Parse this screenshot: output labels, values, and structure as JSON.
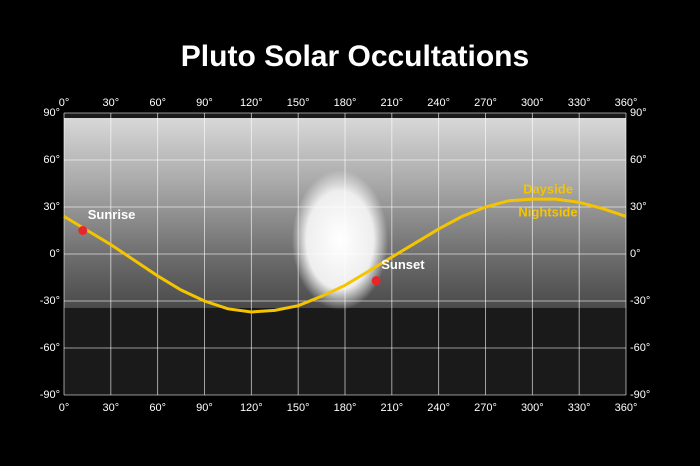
{
  "chart_data": {
    "type": "line",
    "title": "Pluto Solar Occultations",
    "x": [
      0,
      15,
      30,
      45,
      60,
      75,
      90,
      105,
      120,
      135,
      150,
      165,
      180,
      195,
      210,
      225,
      240,
      255,
      270,
      285,
      300,
      315,
      330,
      345,
      360
    ],
    "series": [
      {
        "color": "#f5c400",
        "values": [
          24,
          15,
          6,
          -4,
          -14,
          -23,
          -30,
          -35,
          -37,
          -36,
          -33,
          -27,
          -20,
          -11,
          -2,
          7,
          16,
          24,
          30,
          34,
          35,
          35,
          33,
          29,
          24
        ]
      }
    ],
    "points": [
      {
        "label": "Sunrise",
        "x": 12,
        "y": 15,
        "color": "#e8262a"
      },
      {
        "label": "Sunset",
        "x": 200,
        "y": -17,
        "color": "#e8262a"
      }
    ],
    "annotations": [
      "Dayside",
      "Nightside"
    ],
    "xlim": [
      0,
      360
    ],
    "ylim": [
      -90,
      90
    ],
    "xticks": [
      {
        "value": 0,
        "label": "0°"
      },
      {
        "value": 30,
        "label": "30°"
      },
      {
        "value": 60,
        "label": "60°"
      },
      {
        "value": 90,
        "label": "90°"
      },
      {
        "value": 120,
        "label": "120°"
      },
      {
        "value": 150,
        "label": "150°"
      },
      {
        "value": 180,
        "label": "180°"
      },
      {
        "value": 210,
        "label": "210°"
      },
      {
        "value": 240,
        "label": "240°"
      },
      {
        "value": 270,
        "label": "270°"
      },
      {
        "value": 300,
        "label": "300°"
      },
      {
        "value": 330,
        "label": "330°"
      },
      {
        "value": 360,
        "label": "360°"
      }
    ],
    "yticks": [
      {
        "value": 90,
        "label": "90°"
      },
      {
        "value": 60,
        "label": "60°"
      },
      {
        "value": 30,
        "label": "30°"
      },
      {
        "value": 0,
        "label": "0°"
      },
      {
        "value": -30,
        "label": "-30°"
      },
      {
        "value": -60,
        "label": "-60°"
      },
      {
        "value": -90,
        "label": "-90°"
      }
    ],
    "grid": true
  }
}
